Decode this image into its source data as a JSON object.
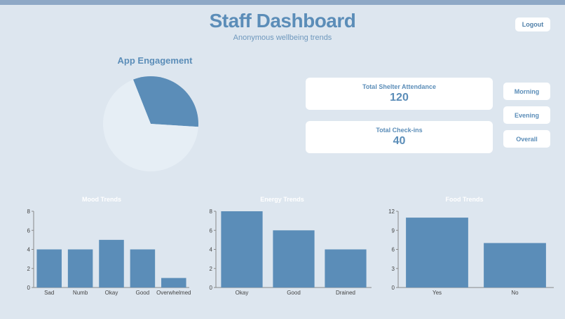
{
  "header": {
    "title": "Staff Dashboard",
    "subtitle": "Anonymous wellbeing trends",
    "logout_label": "Logout"
  },
  "engagement": {
    "title": "App Engagement"
  },
  "stats": {
    "attendance_label": "Total Shelter Attendance",
    "attendance_value": "120",
    "checkins_label": "Total Check-ins",
    "checkins_value": "40"
  },
  "filters": {
    "morning": "Morning",
    "evening": "Evening",
    "overall": "Overall"
  },
  "colors": {
    "accent": "#5b8db8",
    "pie_light": "#e6eef5",
    "background": "#dde6ef"
  },
  "chart_data": [
    {
      "type": "pie",
      "title": "App Engagement",
      "values": [
        0.32,
        0.68
      ],
      "colors": [
        "#5b8db8",
        "#e6eef5"
      ]
    },
    {
      "type": "bar",
      "title": "Mood Trends",
      "categories": [
        "Sad",
        "Numb",
        "Okay",
        "Good",
        "Overwhelmed"
      ],
      "values": [
        4,
        4,
        5,
        4,
        1
      ],
      "ylim": [
        0,
        8
      ],
      "yticks": [
        0,
        2,
        4,
        6,
        8
      ]
    },
    {
      "type": "bar",
      "title": "Energy Trends",
      "categories": [
        "Okay",
        "Good",
        "Drained"
      ],
      "values": [
        8,
        6,
        4
      ],
      "ylim": [
        0,
        8
      ],
      "yticks": [
        0,
        2,
        4,
        6,
        8
      ]
    },
    {
      "type": "bar",
      "title": "Food Trends",
      "categories": [
        "Yes",
        "No"
      ],
      "values": [
        11,
        7
      ],
      "ylim": [
        0,
        12
      ],
      "yticks": [
        0,
        3,
        6,
        9,
        12
      ]
    }
  ]
}
